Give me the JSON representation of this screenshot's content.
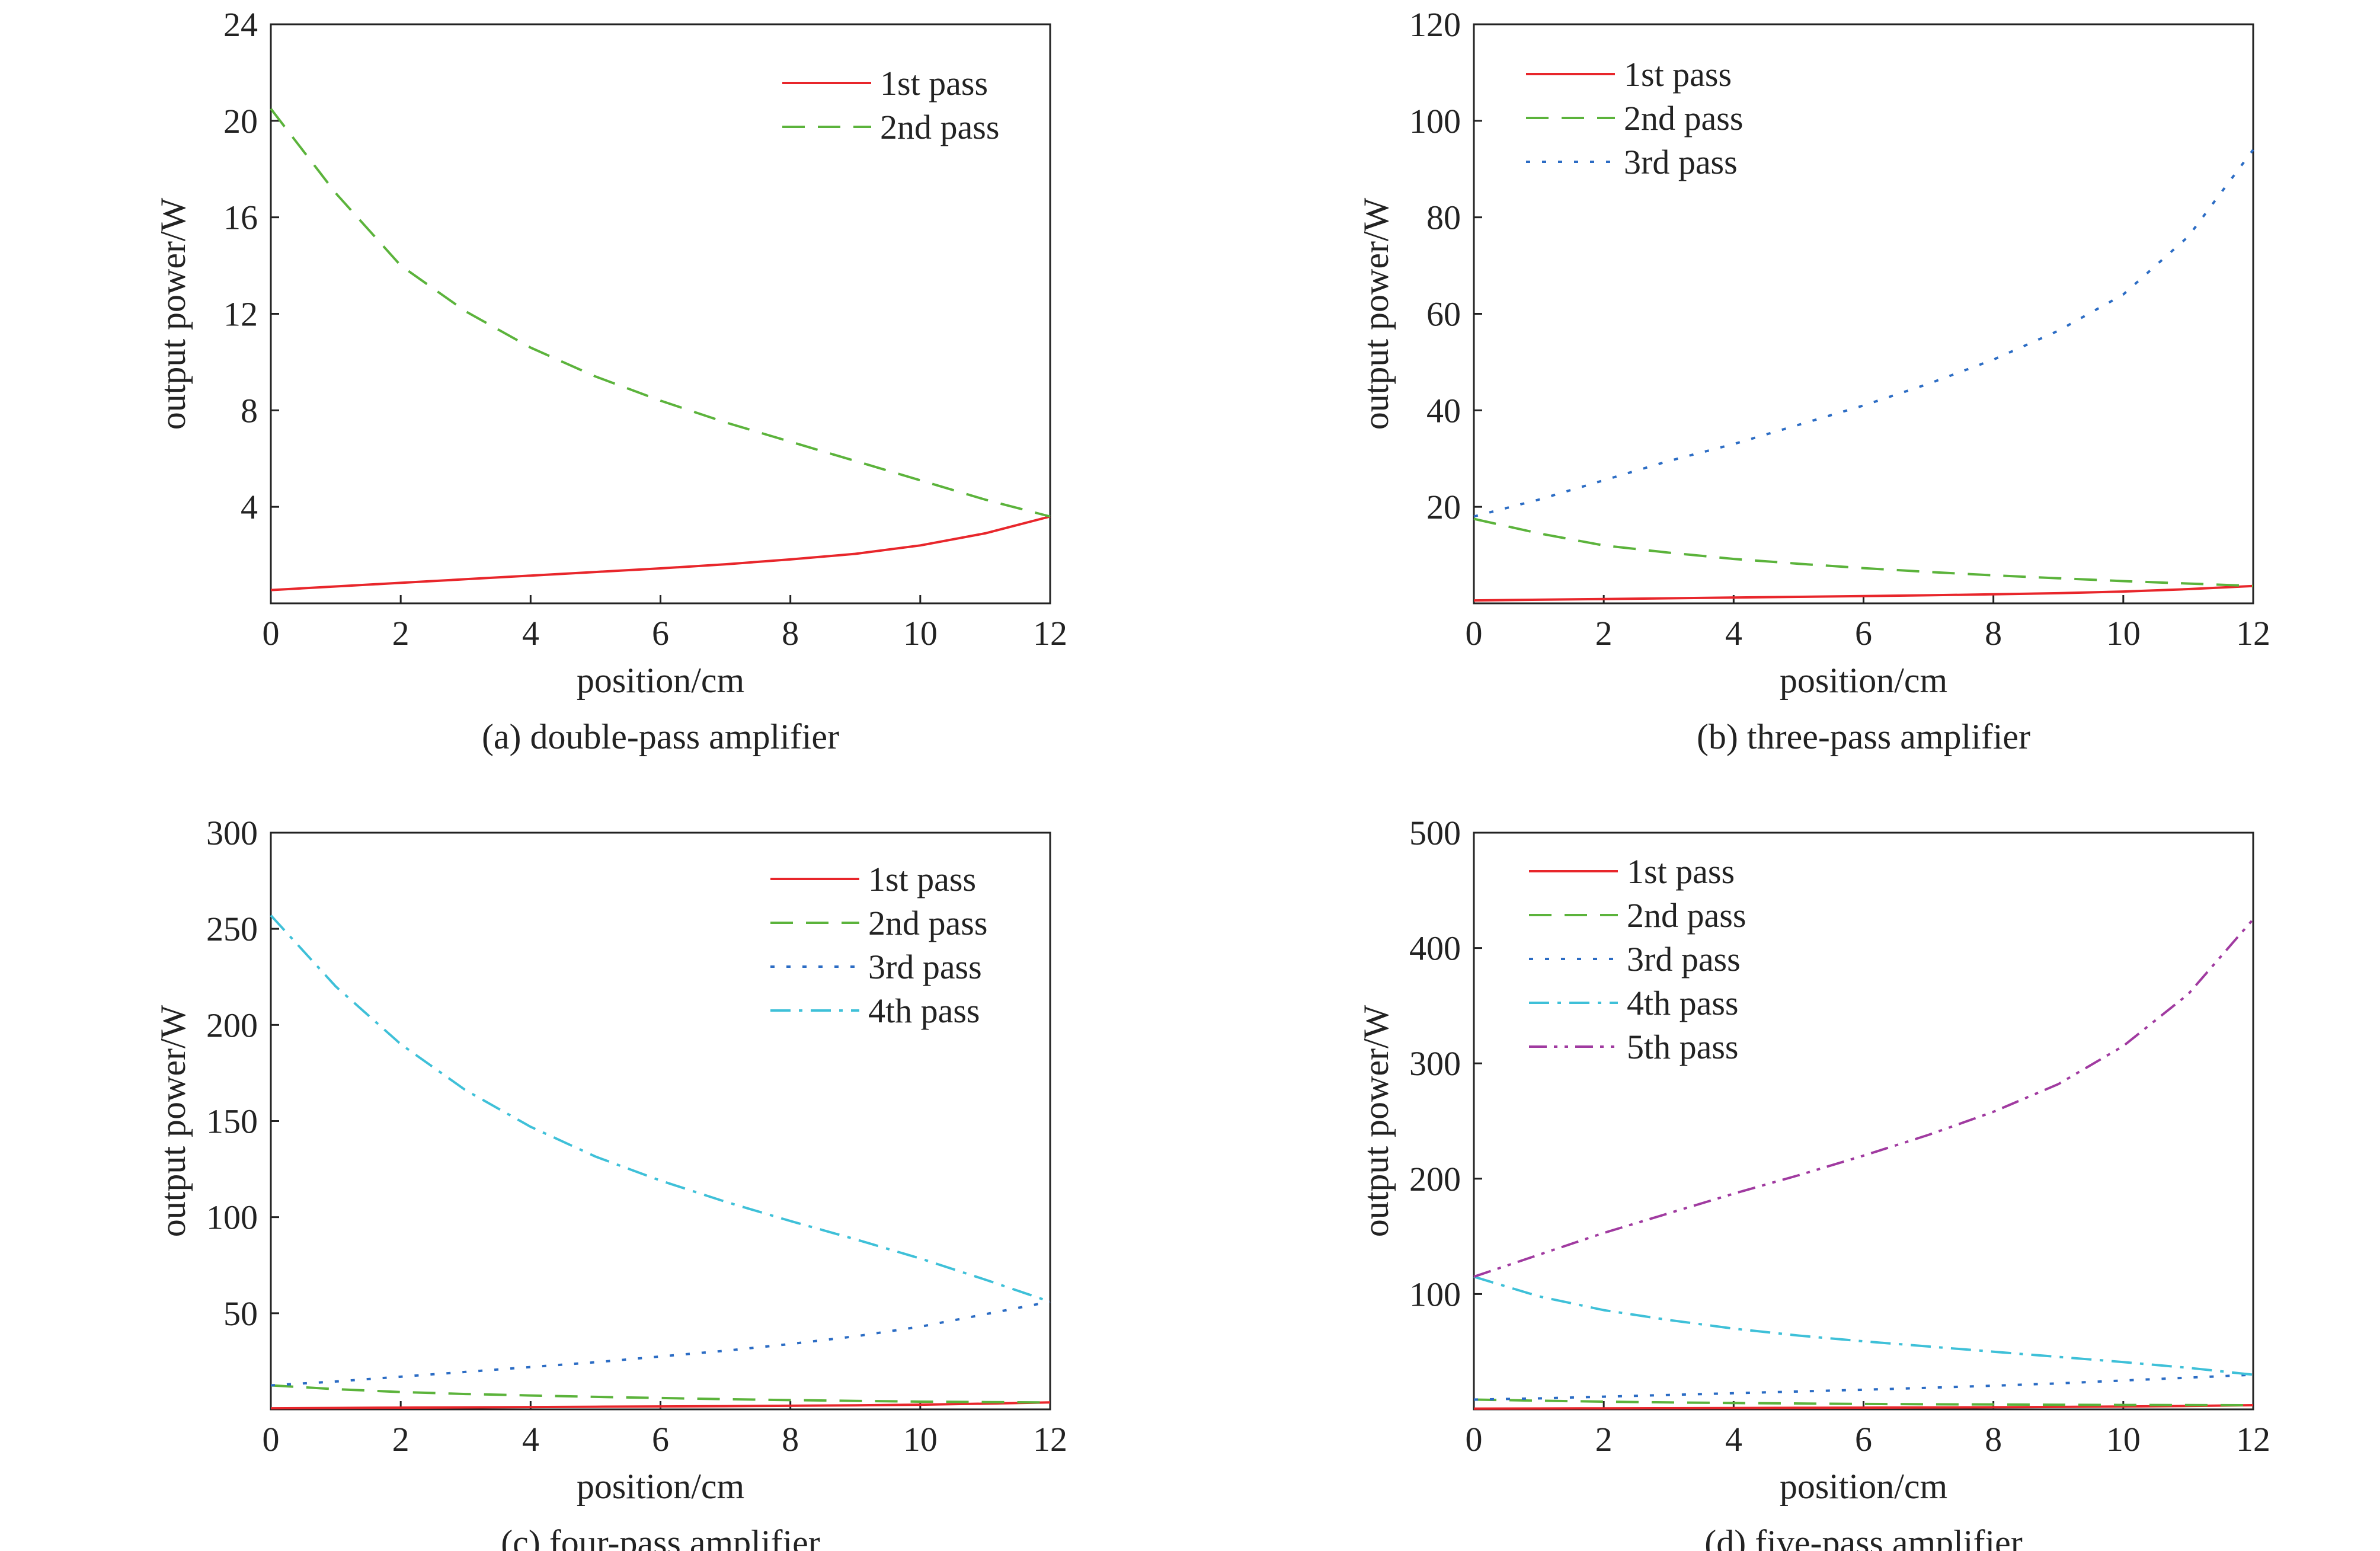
{
  "colors": {
    "pass1": "#e8262b",
    "pass2": "#5bb33b",
    "pass3": "#2b6cc4",
    "pass4": "#3ec0d8",
    "pass5": "#a03aa0",
    "axis": "#222222"
  },
  "chart_data": [
    {
      "type": "line",
      "caption": "(a) double-pass amplifier",
      "xlabel": "position/cm",
      "ylabel": "output power/W",
      "xlim": [
        0,
        12
      ],
      "ylim": [
        0,
        24
      ],
      "xticks": [
        0,
        2,
        4,
        6,
        8,
        10,
        12
      ],
      "yticks": [
        4,
        8,
        12,
        16,
        20,
        24
      ],
      "legend_position": "top-right",
      "grid": false,
      "x": [
        0,
        1,
        2,
        3,
        4,
        5,
        6,
        7,
        8,
        9,
        10,
        11,
        12
      ],
      "series": [
        {
          "name": "1st pass",
          "style": "solid",
          "color_key": "pass1",
          "values": [
            0.55,
            0.7,
            0.85,
            1.0,
            1.15,
            1.3,
            1.45,
            1.62,
            1.82,
            2.05,
            2.4,
            2.9,
            3.6
          ]
        },
        {
          "name": "2nd pass",
          "style": "dashed",
          "color_key": "pass2",
          "values": [
            20.5,
            17.0,
            14.0,
            12.1,
            10.6,
            9.4,
            8.4,
            7.5,
            6.7,
            5.9,
            5.1,
            4.3,
            3.6
          ]
        }
      ]
    },
    {
      "type": "line",
      "caption": "(b) three-pass amplifier",
      "xlabel": "position/cm",
      "ylabel": "output power/W",
      "xlim": [
        0,
        12
      ],
      "ylim": [
        0,
        120
      ],
      "xticks": [
        0,
        2,
        4,
        6,
        8,
        10,
        12
      ],
      "yticks": [
        20,
        40,
        60,
        80,
        100,
        120
      ],
      "legend_position": "top-left",
      "grid": false,
      "x": [
        0,
        1,
        2,
        3,
        4,
        5,
        6,
        7,
        8,
        9,
        10,
        11,
        12
      ],
      "series": [
        {
          "name": "1st pass",
          "style": "solid",
          "color_key": "pass1",
          "values": [
            0.6,
            0.75,
            0.9,
            1.05,
            1.2,
            1.35,
            1.5,
            1.67,
            1.87,
            2.1,
            2.45,
            2.95,
            3.6
          ]
        },
        {
          "name": "2nd pass",
          "style": "dashed",
          "color_key": "pass2",
          "values": [
            17.5,
            14.5,
            12.0,
            10.5,
            9.2,
            8.2,
            7.3,
            6.5,
            5.8,
            5.2,
            4.6,
            4.1,
            3.6
          ]
        },
        {
          "name": "3rd pass",
          "style": "dotted",
          "color_key": "pass3",
          "values": [
            18.0,
            21.5,
            25.5,
            29.5,
            33.0,
            37.0,
            41.0,
            45.5,
            50.5,
            56.5,
            64.0,
            76.0,
            94.0
          ]
        }
      ]
    },
    {
      "type": "line",
      "caption": "(c) four-pass amplifier",
      "xlabel": "position/cm",
      "ylabel": "output power/W",
      "xlim": [
        0,
        12
      ],
      "ylim": [
        0,
        300
      ],
      "xticks": [
        0,
        2,
        4,
        6,
        8,
        10,
        12
      ],
      "yticks": [
        50,
        100,
        150,
        200,
        250,
        300
      ],
      "legend_position": "top-right",
      "grid": false,
      "x": [
        0,
        1,
        2,
        3,
        4,
        5,
        6,
        7,
        8,
        9,
        10,
        11,
        12
      ],
      "series": [
        {
          "name": "1st pass",
          "style": "solid",
          "color_key": "pass1",
          "values": [
            0.6,
            0.75,
            0.9,
            1.05,
            1.2,
            1.35,
            1.5,
            1.67,
            1.87,
            2.1,
            2.45,
            2.95,
            3.6
          ]
        },
        {
          "name": "2nd pass",
          "style": "dashed",
          "color_key": "pass2",
          "values": [
            12.5,
            10.5,
            9.0,
            8.0,
            7.2,
            6.5,
            5.9,
            5.3,
            4.8,
            4.4,
            4.0,
            3.8,
            3.6
          ]
        },
        {
          "name": "3rd pass",
          "style": "dotted",
          "color_key": "pass3",
          "values": [
            12.5,
            14.5,
            17.0,
            19.5,
            22.0,
            24.5,
            27.5,
            30.5,
            34.0,
            38.0,
            43.0,
            49.5,
            56.0
          ]
        },
        {
          "name": "4th pass",
          "style": "dashdot",
          "color_key": "pass4",
          "values": [
            257.0,
            220.0,
            190.0,
            166.0,
            147.0,
            131.5,
            119.0,
            108.0,
            98.0,
            88.5,
            78.5,
            67.5,
            56.0
          ]
        }
      ]
    },
    {
      "type": "line",
      "caption": "(d) five-pass amplifier",
      "xlabel": "position/cm",
      "ylabel": "output power/W",
      "xlim": [
        0,
        12
      ],
      "ylim": [
        0,
        500
      ],
      "xticks": [
        0,
        2,
        4,
        6,
        8,
        10,
        12
      ],
      "yticks": [
        100,
        200,
        300,
        400,
        500
      ],
      "legend_position": "top-left",
      "grid": false,
      "x": [
        0,
        1,
        2,
        3,
        4,
        5,
        6,
        7,
        8,
        9,
        10,
        11,
        12
      ],
      "series": [
        {
          "name": "1st pass",
          "style": "solid",
          "color_key": "pass1",
          "values": [
            0.6,
            0.75,
            0.9,
            1.05,
            1.2,
            1.35,
            1.5,
            1.67,
            1.87,
            2.1,
            2.45,
            2.95,
            3.6
          ]
        },
        {
          "name": "2nd pass",
          "style": "dashed",
          "color_key": "pass2",
          "values": [
            8.5,
            7.5,
            6.7,
            6.0,
            5.5,
            5.1,
            4.7,
            4.4,
            4.2,
            4.0,
            3.8,
            3.7,
            3.6
          ]
        },
        {
          "name": "3rd pass",
          "style": "dotted",
          "color_key": "pass3",
          "values": [
            8.5,
            9.5,
            11.0,
            12.5,
            14.0,
            15.5,
            17.0,
            18.7,
            20.5,
            22.5,
            25.0,
            27.5,
            30.0
          ]
        },
        {
          "name": "4th pass",
          "style": "dashdot",
          "color_key": "pass4",
          "values": [
            115.0,
            98.0,
            86.0,
            77.5,
            70.0,
            64.0,
            59.0,
            54.5,
            50.0,
            45.5,
            41.0,
            36.0,
            30.0
          ]
        },
        {
          "name": "5th pass",
          "style": "dashdotdot",
          "color_key": "pass5",
          "values": [
            115.0,
            134.0,
            153.0,
            170.0,
            187.0,
            203.0,
            220.0,
            238.0,
            258.0,
            282.0,
            315.0,
            360.0,
            425.0
          ]
        }
      ]
    }
  ]
}
